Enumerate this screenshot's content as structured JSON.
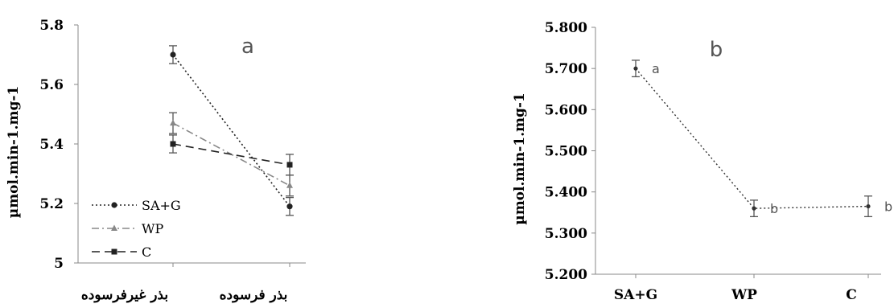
{
  "chart_data": [
    {
      "type": "line",
      "panel_label": "a",
      "ylabel": "µmol.min-1.mg-1",
      "ylim": [
        5,
        5.8
      ],
      "yticks": [
        "5",
        "5.2",
        "5.4",
        "5.6",
        "5.8"
      ],
      "categories": [
        "بذر غیرفرسوده",
        "بذر فرسوده"
      ],
      "series": [
        {
          "name": "SA+G",
          "values": [
            5.7,
            5.19
          ],
          "errors": [
            0.03,
            0.03
          ],
          "color": "#222222",
          "dash": "2,3",
          "marker": "circle"
        },
        {
          "name": "WP",
          "values": [
            5.47,
            5.26
          ],
          "errors": [
            0.035,
            0.035
          ],
          "color": "#888888",
          "dash": "9,4,2,4",
          "marker": "triangle"
        },
        {
          "name": "C",
          "values": [
            5.4,
            5.33
          ],
          "errors": [
            0.03,
            0.035
          ],
          "color": "#222222",
          "dash": "10,6",
          "marker": "square"
        }
      ]
    },
    {
      "type": "line",
      "panel_label": "b",
      "ylabel": "µmol.min-1.mg-1",
      "ylim": [
        5.2,
        5.8
      ],
      "yticks": [
        "5.200",
        "5.300",
        "5.400",
        "5.500",
        "5.600",
        "5.700",
        "5.800"
      ],
      "categories": [
        "SA+G",
        "WP",
        "C"
      ],
      "series": [
        {
          "values": [
            5.7,
            5.36,
            5.365
          ],
          "errors": [
            0.02,
            0.02,
            0.025
          ],
          "color": "#333333",
          "dash": "2,3"
        }
      ],
      "point_labels": [
        "a",
        "b",
        "b"
      ]
    }
  ]
}
